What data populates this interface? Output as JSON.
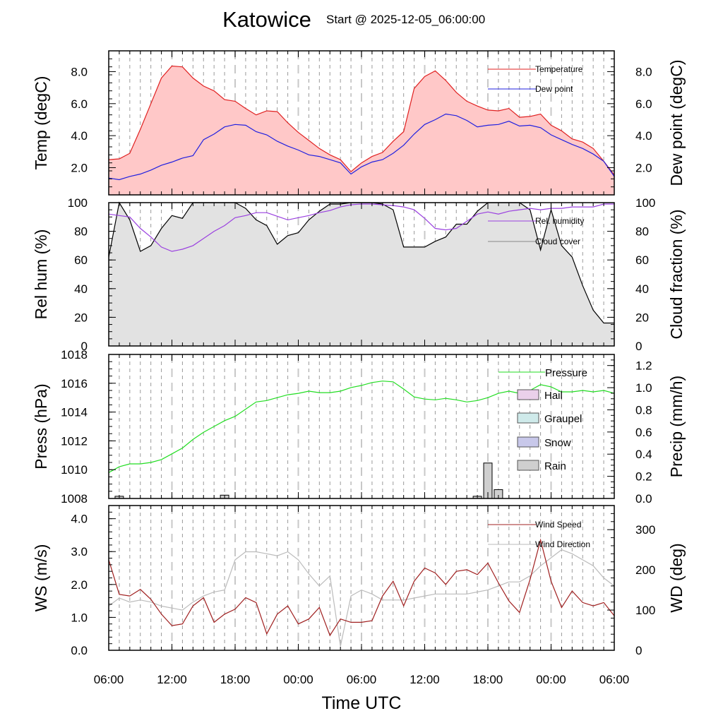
{
  "title": "Katowice",
  "subtitle": "Start @ 2025-12-05_06:00:00",
  "xaxis": {
    "label": "Time UTC",
    "ticks": [
      "06:00",
      "12:00",
      "18:00",
      "00:00",
      "06:00",
      "12:00",
      "18:00",
      "00:00",
      "06:00"
    ],
    "tick_hours": [
      0,
      6,
      12,
      18,
      24,
      30,
      36,
      42,
      48
    ],
    "range_hours": [
      0,
      48
    ]
  },
  "colors": {
    "temperature": "#e02020",
    "temp_fill": "#ffc8c8",
    "dewpoint": "#2020e0",
    "rh": "#9a40e0",
    "cloud": "#000000",
    "cloud_fill": "#e2e2e2",
    "pressure": "#22dd22",
    "rain": "#cfcfcf",
    "hail": "#ead0ea",
    "graupel": "#cfeaea",
    "snow": "#c8c8ea",
    "wind_speed": "#a02020",
    "wind_dir": "#bbbbbb"
  },
  "chart_data": [
    {
      "type": "area",
      "panel": "temperature",
      "ylabel_left": "Temp (degC)",
      "ylabel_right": "Dew point (degC)",
      "ylim": [
        0.3,
        9.3
      ],
      "yticks": [
        2.0,
        4.0,
        6.0,
        8.0
      ],
      "yticklabels": [
        "2.0",
        "4.0",
        "6.0",
        "8.0"
      ],
      "legend": [
        "Temperature",
        "Dew point"
      ],
      "series": [
        {
          "name": "Temperature",
          "values": [
            2.5,
            2.55,
            2.9,
            4.4,
            6.0,
            7.6,
            8.35,
            8.3,
            7.6,
            7.1,
            6.8,
            6.25,
            6.15,
            5.7,
            5.3,
            5.55,
            5.5,
            4.8,
            4.2,
            3.7,
            3.2,
            2.8,
            2.5,
            1.75,
            2.3,
            2.7,
            2.95,
            3.65,
            4.25,
            6.95,
            7.7,
            8.05,
            7.45,
            6.7,
            6.15,
            5.85,
            5.6,
            5.55,
            5.7,
            5.15,
            5.2,
            5.35,
            4.65,
            4.3,
            3.8,
            3.6,
            3.2,
            2.4,
            1.55
          ]
        },
        {
          "name": "Dew point",
          "values": [
            1.35,
            1.25,
            1.45,
            1.6,
            1.85,
            2.15,
            2.35,
            2.6,
            2.75,
            3.75,
            4.1,
            4.55,
            4.7,
            4.65,
            4.25,
            4.05,
            3.65,
            3.35,
            3.1,
            2.8,
            2.7,
            2.5,
            2.3,
            1.6,
            2.05,
            2.35,
            2.5,
            2.9,
            3.4,
            4.1,
            4.7,
            5.0,
            5.35,
            5.25,
            4.95,
            4.55,
            4.65,
            4.7,
            4.9,
            4.6,
            4.65,
            4.5,
            4.05,
            3.75,
            3.45,
            3.2,
            2.85,
            2.4,
            1.45
          ]
        }
      ]
    },
    {
      "type": "area",
      "panel": "humidity_cloud",
      "ylabel_left": "Rel hum (%)",
      "ylabel_right": "Cloud fraction (%)",
      "ylim": [
        0,
        100
      ],
      "yticks": [
        0,
        20,
        40,
        60,
        80,
        100
      ],
      "yticklabels": [
        "0",
        "20",
        "40",
        "60",
        "80",
        "100"
      ],
      "legend": [
        "Rel. humidity",
        "Cloud cover"
      ],
      "series": [
        {
          "name": "Rel. humidity",
          "values": [
            92,
            91,
            90,
            82,
            76,
            69,
            66,
            67.5,
            70,
            75,
            80,
            84,
            89.5,
            91,
            93,
            93,
            90.5,
            88,
            89.5,
            91,
            93,
            94.5,
            97,
            98.5,
            99,
            99,
            98.5,
            98,
            97,
            95,
            89,
            82,
            81,
            82,
            87,
            92,
            93.5,
            92,
            94,
            95,
            96,
            95,
            96,
            96,
            97,
            97,
            97,
            99,
            99
          ]
        },
        {
          "name": "Cloud cover",
          "values": [
            62,
            100,
            88,
            66,
            70,
            82,
            91,
            89,
            100,
            100,
            100,
            100,
            100,
            96,
            88,
            84,
            71,
            77,
            79,
            88,
            94,
            99,
            99,
            100,
            100,
            100,
            99,
            95,
            69,
            69,
            69,
            73,
            76,
            85,
            85,
            94,
            100,
            100,
            100,
            100,
            95,
            67,
            95,
            70,
            62,
            42,
            25,
            16,
            16
          ]
        }
      ]
    },
    {
      "type": "line",
      "panel": "pressure_precip",
      "ylabel_left": "Press (hPa)",
      "ylabel_right": "Precip (mm/h)",
      "ylim_left": [
        1008,
        1018
      ],
      "yticks_left": [
        1008,
        1010,
        1012,
        1014,
        1016,
        1018
      ],
      "yticklabels_left": [
        "1008",
        "1010",
        "1012",
        "1014",
        "1016",
        "1018"
      ],
      "ylim_right": [
        0,
        1.3
      ],
      "yticks_right": [
        0.0,
        0.2,
        0.4,
        0.6,
        0.8,
        1.0,
        1.2
      ],
      "yticklabels_right": [
        "0.0",
        "0.2",
        "0.4",
        "0.6",
        "0.8",
        "1.0",
        "1.2"
      ],
      "legend": [
        "Pressure",
        "Hail",
        "Graupel",
        "Snow",
        "Rain"
      ],
      "series": [
        {
          "name": "Pressure",
          "values": [
            1009.8,
            1010.2,
            1010.4,
            1010.4,
            1010.5,
            1010.7,
            1011.1,
            1011.5,
            1012.1,
            1012.6,
            1013.0,
            1013.4,
            1013.7,
            1014.2,
            1014.7,
            1014.8,
            1015.0,
            1015.2,
            1015.3,
            1015.45,
            1015.35,
            1015.35,
            1015.45,
            1015.7,
            1015.85,
            1016.05,
            1016.15,
            1016.1,
            1015.6,
            1015.05,
            1014.9,
            1014.85,
            1014.95,
            1014.85,
            1014.7,
            1014.8,
            1015.0,
            1015.3,
            1015.45,
            1015.3,
            1015.5,
            1015.9,
            1015.75,
            1015.4,
            1015.4,
            1015.5,
            1015.4,
            1015.5,
            1015.3
          ]
        },
        {
          "name": "Rain",
          "x": [
            1,
            11,
            35,
            36,
            37
          ],
          "values": [
            0.02,
            0.03,
            0.02,
            0.32,
            0.08
          ]
        }
      ]
    },
    {
      "type": "line",
      "panel": "wind",
      "ylabel_left": "WS (m/s)",
      "ylabel_right": "WD (deg)",
      "ylim_left": [
        0,
        4.4
      ],
      "yticks_left": [
        0.0,
        1.0,
        2.0,
        3.0,
        4.0
      ],
      "yticklabels_left": [
        "0.0",
        "1.0",
        "2.0",
        "3.0",
        "4.0"
      ],
      "ylim_right": [
        0,
        360
      ],
      "yticks_right": [
        0,
        100,
        200,
        300
      ],
      "yticklabels_right": [
        "0",
        "100",
        "200",
        "300"
      ],
      "legend": [
        "Wind Speed",
        "Wind Direction"
      ],
      "series": [
        {
          "name": "Wind Speed",
          "values": [
            2.75,
            1.7,
            1.65,
            1.85,
            1.55,
            1.1,
            0.75,
            0.8,
            1.35,
            1.6,
            0.85,
            1.1,
            1.25,
            1.6,
            1.45,
            0.5,
            1.1,
            1.35,
            0.8,
            0.95,
            1.3,
            0.45,
            0.95,
            0.85,
            0.85,
            0.9,
            1.65,
            2.1,
            1.35,
            2.1,
            2.5,
            2.35,
            2.0,
            2.4,
            2.45,
            2.3,
            2.65,
            2.05,
            1.5,
            1.15,
            2.15,
            3.35,
            2.1,
            1.3,
            1.8,
            1.45,
            1.35,
            1.45,
            1.05
          ]
        },
        {
          "name": "Wind Direction",
          "values": [
            110,
            130,
            120,
            125,
            120,
            110,
            105,
            100,
            120,
            135,
            145,
            150,
            225,
            245,
            245,
            240,
            235,
            245,
            225,
            190,
            160,
            185,
            10,
            135,
            150,
            140,
            125,
            125,
            125,
            130,
            135,
            140,
            140,
            140,
            140,
            145,
            150,
            160,
            170,
            170,
            185,
            210,
            230,
            250,
            240,
            225,
            210,
            180,
            160
          ]
        }
      ]
    }
  ]
}
